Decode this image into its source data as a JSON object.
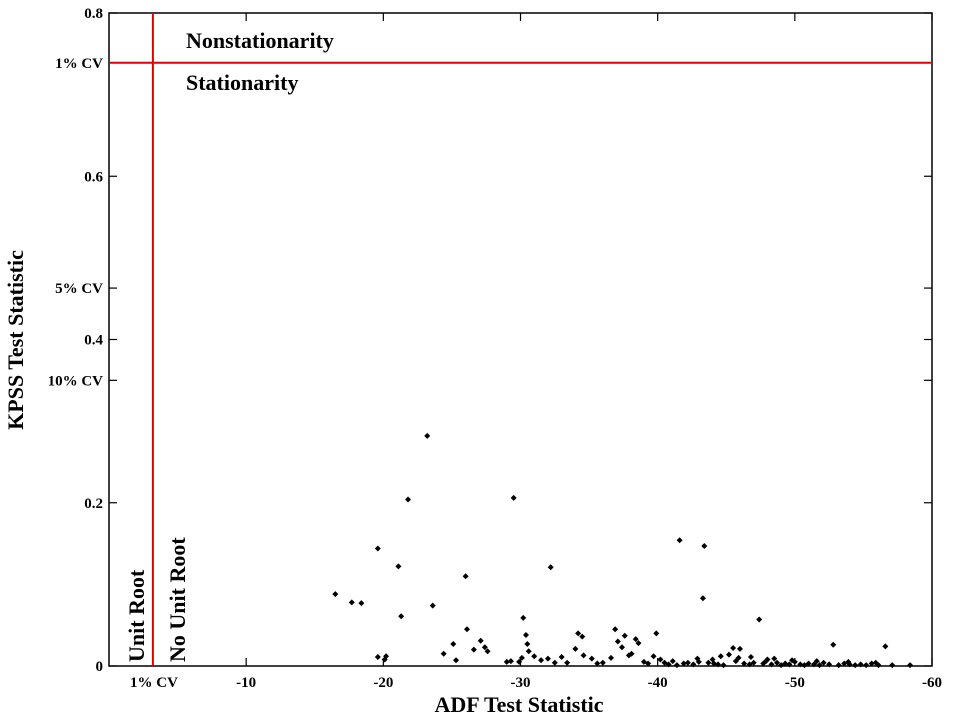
{
  "chart_data": {
    "type": "scatter",
    "title": "",
    "xlabel": "ADF Test Statistic",
    "ylabel": "KPSS Test Statistic",
    "xlim": [
      0,
      -60
    ],
    "ylim": [
      0,
      0.8
    ],
    "grid": false,
    "x_ticks": [
      {
        "value": -10,
        "label": "-10"
      },
      {
        "value": -20,
        "label": "-20"
      },
      {
        "value": -30,
        "label": "-30"
      },
      {
        "value": -40,
        "label": "-40"
      },
      {
        "value": -50,
        "label": "-50"
      },
      {
        "value": -60,
        "label": "-60"
      }
    ],
    "y_ticks": [
      {
        "value": 0,
        "label": "0"
      },
      {
        "value": 0.2,
        "label": "0.2"
      },
      {
        "value": 0.35,
        "label": "10% CV"
      },
      {
        "value": 0.4,
        "label": "0.4"
      },
      {
        "value": 0.463,
        "label": "5% CV"
      },
      {
        "value": 0.6,
        "label": "0.6"
      },
      {
        "value": 0.739,
        "label": "1% CV"
      },
      {
        "value": 0.8,
        "label": "0.8"
      }
    ],
    "critical_lines": {
      "color": "#e00000",
      "adf_1pct": {
        "value": -3.2,
        "label": "1% CV"
      },
      "kpss_1pct": {
        "value": 0.739
      }
    },
    "region_labels": {
      "above": "Nonstationarity",
      "below": "Stationarity",
      "left": "Unit Root",
      "right": "No Unit Root"
    },
    "points": [
      [
        -16.5,
        0.088
      ],
      [
        -17.7,
        0.078
      ],
      [
        -18.4,
        0.077
      ],
      [
        -21.1,
        0.122
      ],
      [
        -21.3,
        0.061
      ],
      [
        -19.6,
        0.144
      ],
      [
        -21.8,
        0.204
      ],
      [
        -23.2,
        0.282
      ],
      [
        -23.6,
        0.074
      ],
      [
        -26.0,
        0.11
      ],
      [
        -26.1,
        0.045
      ],
      [
        -24.4,
        0.015
      ],
      [
        -25.1,
        0.027
      ],
      [
        -25.3,
        0.007
      ],
      [
        -19.6,
        0.011
      ],
      [
        -20.2,
        0.012
      ],
      [
        -20.1,
        0.008
      ],
      [
        -26.6,
        0.02
      ],
      [
        -27.1,
        0.031
      ],
      [
        -27.4,
        0.023
      ],
      [
        -27.6,
        0.018
      ],
      [
        -29.5,
        0.206
      ],
      [
        -30.2,
        0.059
      ],
      [
        -30.4,
        0.038
      ],
      [
        -30.5,
        0.027
      ],
      [
        -30.6,
        0.018
      ],
      [
        -30.1,
        0.01
      ],
      [
        -29.9,
        0.005
      ],
      [
        -29.3,
        0.006
      ],
      [
        -29.0,
        0.005
      ],
      [
        -31.0,
        0.012
      ],
      [
        -31.5,
        0.007
      ],
      [
        -32.0,
        0.009
      ],
      [
        -32.2,
        0.121
      ],
      [
        -32.5,
        0.004
      ],
      [
        -33.0,
        0.011
      ],
      [
        -33.4,
        0.004
      ],
      [
        -34.0,
        0.021
      ],
      [
        -34.2,
        0.04
      ],
      [
        -34.5,
        0.036
      ],
      [
        -34.6,
        0.013
      ],
      [
        -35.2,
        0.009
      ],
      [
        -35.6,
        0.003
      ],
      [
        -36.0,
        0.004
      ],
      [
        -36.6,
        0.01
      ],
      [
        -36.9,
        0.045
      ],
      [
        -37.1,
        0.03
      ],
      [
        -37.4,
        0.023
      ],
      [
        -37.6,
        0.037
      ],
      [
        -37.9,
        0.013
      ],
      [
        -38.1,
        0.015
      ],
      [
        -38.4,
        0.033
      ],
      [
        -38.6,
        0.028
      ],
      [
        -39.0,
        0.005
      ],
      [
        -39.3,
        0.003
      ],
      [
        -39.7,
        0.012
      ],
      [
        -39.9,
        0.04
      ],
      [
        -40.2,
        0.008
      ],
      [
        -40.5,
        0.004
      ],
      [
        -40.8,
        0.002
      ],
      [
        -41.1,
        0.006
      ],
      [
        -41.4,
        0.001
      ],
      [
        -41.6,
        0.154
      ],
      [
        -41.9,
        0.003
      ],
      [
        -42.2,
        0.004
      ],
      [
        -42.6,
        0.002
      ],
      [
        -43.0,
        0.005
      ],
      [
        -43.3,
        0.083
      ],
      [
        -43.4,
        0.147
      ],
      [
        -43.7,
        0.004
      ],
      [
        -44.1,
        0.003
      ],
      [
        -44.4,
        0.002
      ],
      [
        -44.8,
        0.001
      ],
      [
        -45.2,
        0.014
      ],
      [
        -45.5,
        0.022
      ],
      [
        -45.7,
        0.006
      ],
      [
        -46.0,
        0.021
      ],
      [
        -46.3,
        0.003
      ],
      [
        -46.7,
        0.002
      ],
      [
        -47.0,
        0.004
      ],
      [
        -47.4,
        0.057
      ],
      [
        -47.7,
        0.003
      ],
      [
        -48.0,
        0.008
      ],
      [
        -48.3,
        0.002
      ],
      [
        -48.7,
        0.004
      ],
      [
        -49.0,
        0.001
      ],
      [
        -49.3,
        0.003
      ],
      [
        -49.6,
        0.002
      ],
      [
        -50.0,
        0.005
      ],
      [
        -50.4,
        0.002
      ],
      [
        -50.7,
        0.001
      ],
      [
        -51.0,
        0.003
      ],
      [
        -51.4,
        0.002
      ],
      [
        -51.8,
        0.001
      ],
      [
        -52.1,
        0.004
      ],
      [
        -52.5,
        0.002
      ],
      [
        -52.8,
        0.026
      ],
      [
        -53.2,
        0.001
      ],
      [
        -53.6,
        0.003
      ],
      [
        -54.0,
        0.002
      ],
      [
        -54.4,
        0.001
      ],
      [
        -54.8,
        0.002
      ],
      [
        -55.2,
        0.001
      ],
      [
        -55.6,
        0.003
      ],
      [
        -56.1,
        0.001
      ],
      [
        -56.6,
        0.024
      ],
      [
        -57.1,
        0.001
      ],
      [
        -58.4,
        0.001
      ],
      [
        -44.0,
        0.008
      ],
      [
        -45.9,
        0.01
      ],
      [
        -47.9,
        0.006
      ],
      [
        -49.8,
        0.007
      ],
      [
        -51.6,
        0.006
      ],
      [
        -53.9,
        0.005
      ],
      [
        -55.9,
        0.004
      ],
      [
        -42.9,
        0.009
      ],
      [
        -44.6,
        0.012
      ],
      [
        -46.8,
        0.011
      ],
      [
        -48.5,
        0.009
      ]
    ]
  }
}
